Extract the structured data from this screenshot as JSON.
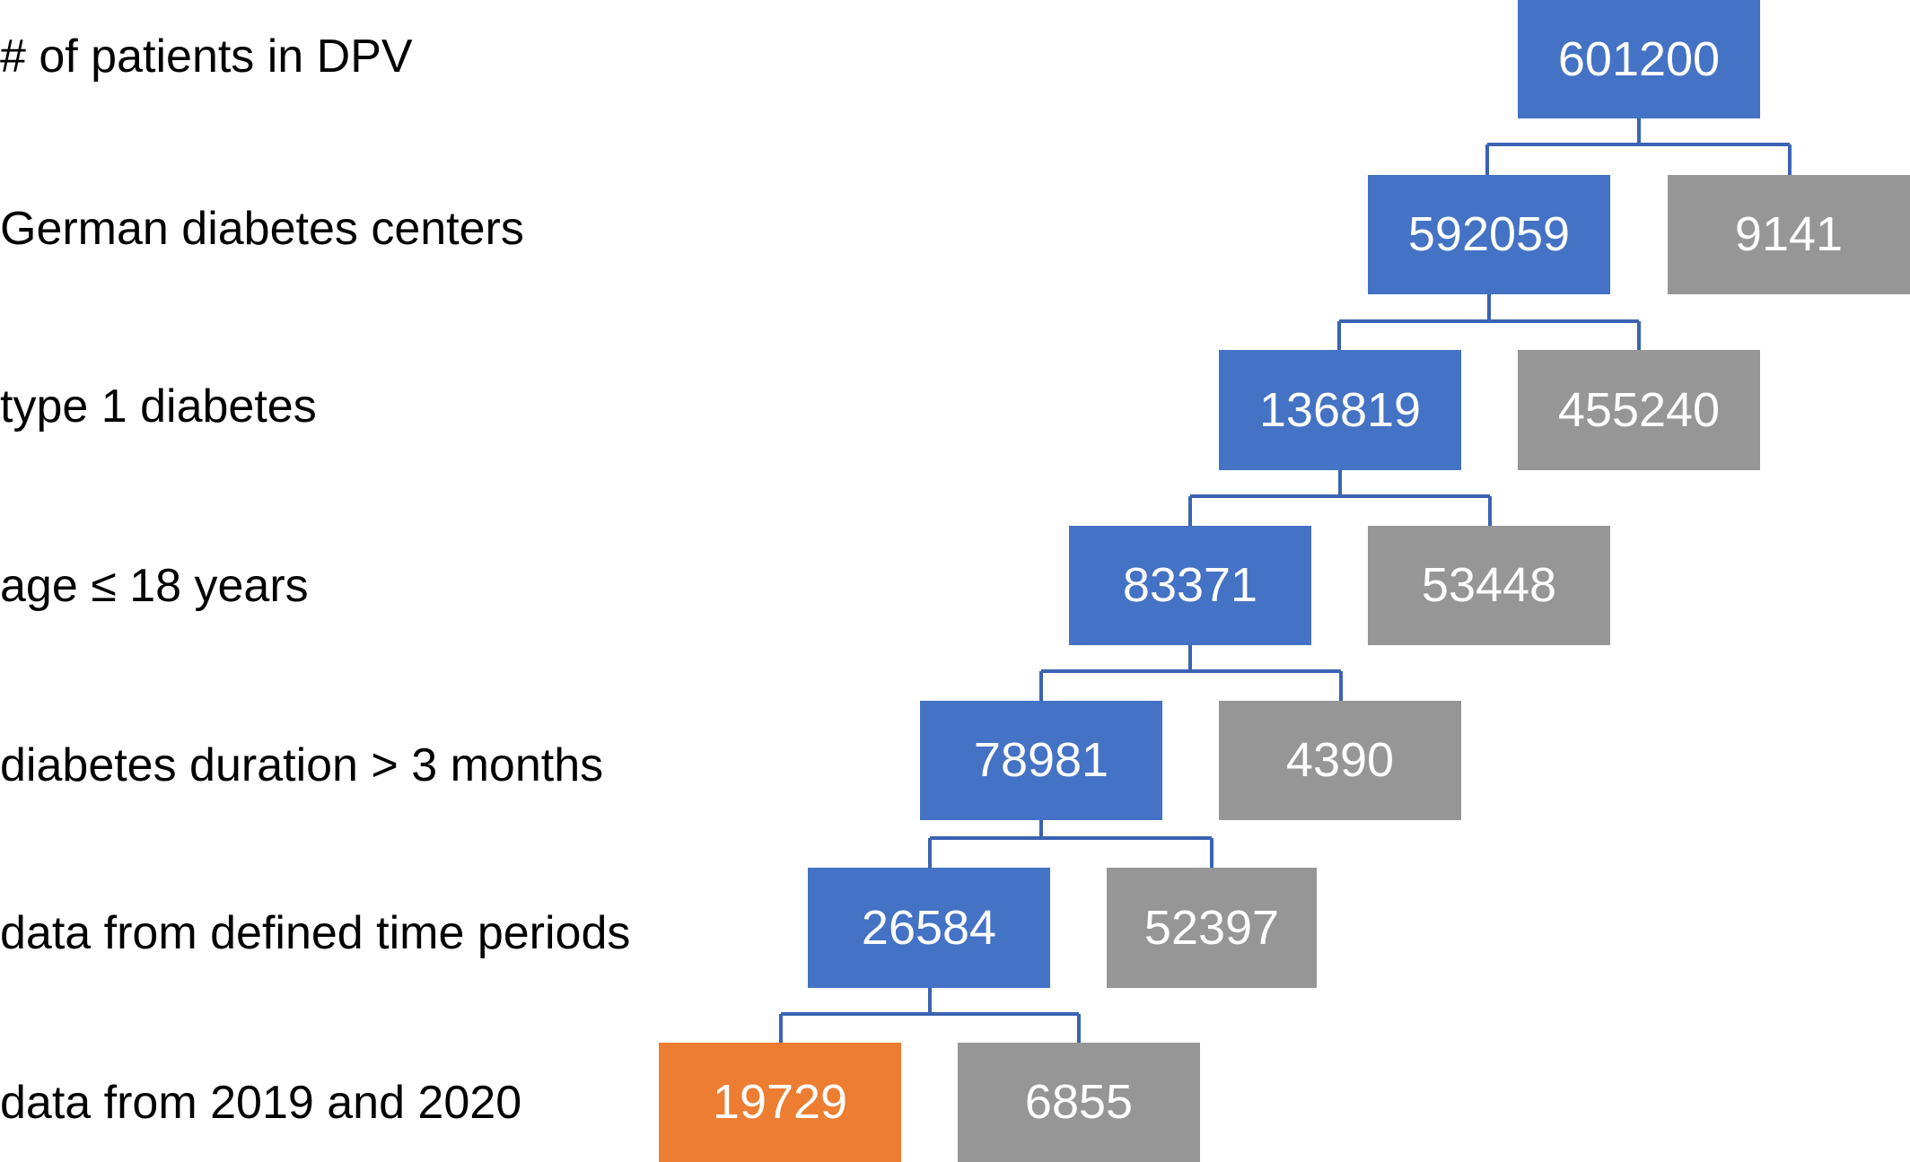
{
  "colors": {
    "included": "#4472c4",
    "excluded": "#969696",
    "final": "#ed7d31",
    "connector": "#3a63b3",
    "label_text": "#000000",
    "box_text": "#ffffff"
  },
  "steps": [
    {
      "label": "# of patients in DPV",
      "included": "601200",
      "excluded": ""
    },
    {
      "label": "German diabetes centers",
      "included": "592059",
      "excluded": "9141"
    },
    {
      "label": "type 1 diabetes",
      "included": "136819",
      "excluded": "455240"
    },
    {
      "label": "age ≤ 18 years",
      "included": "83371",
      "excluded": "53448"
    },
    {
      "label": "diabetes duration > 3 months",
      "included": "78981",
      "excluded": "4390"
    },
    {
      "label": "data from defined time periods",
      "included": "26584",
      "excluded": "52397"
    },
    {
      "label": "data from 2019 and 2020",
      "included": "19729",
      "excluded": "6855"
    }
  ]
}
